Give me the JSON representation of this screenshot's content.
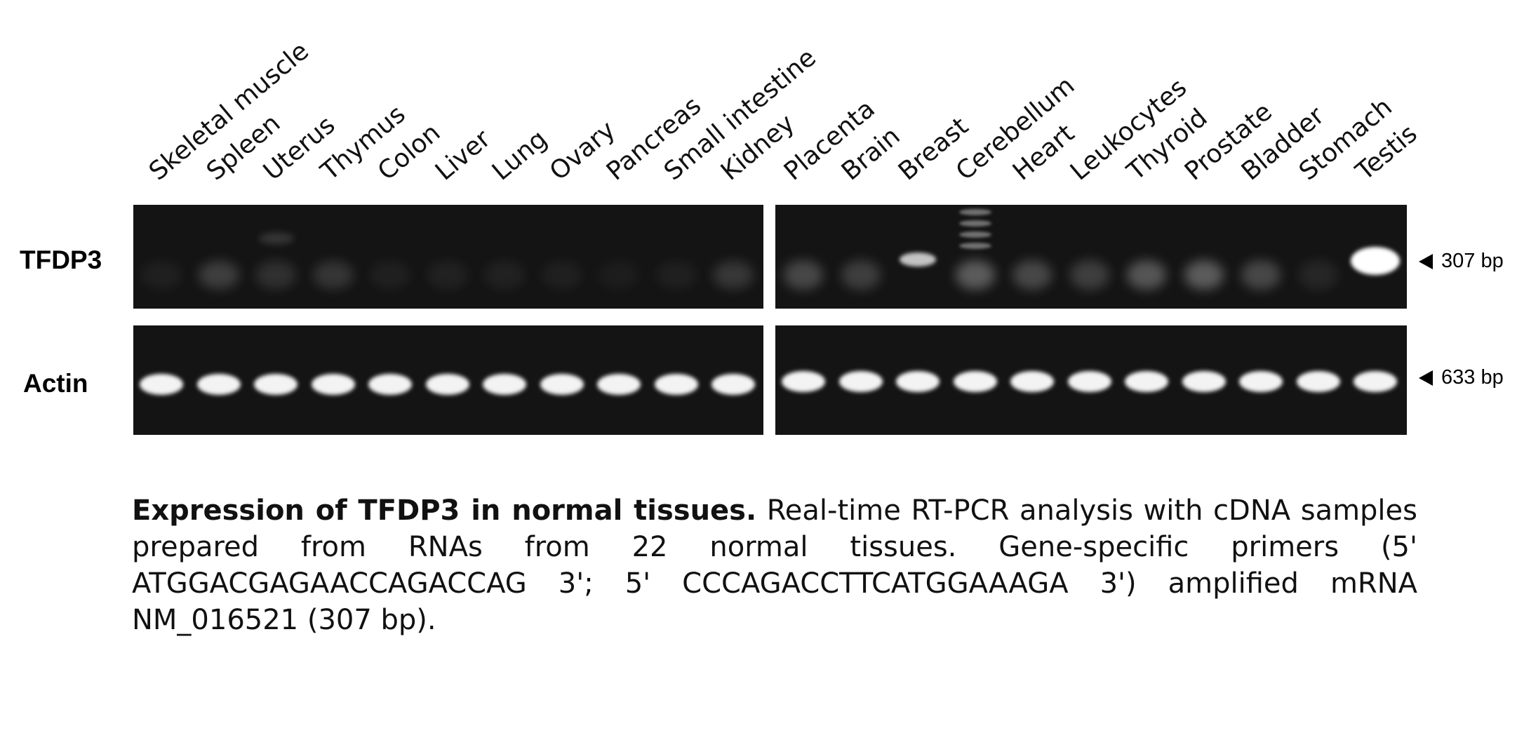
{
  "figure": {
    "lanes_left": [
      "Skeletal muscle",
      "Spleen",
      "Uterus",
      "Thymus",
      "Colon",
      "Liver",
      "Lung",
      "Ovary",
      "Pancreas",
      "Small intestine",
      "Kidney"
    ],
    "lanes_right": [
      "Placenta",
      "Brain",
      "Breast",
      "Cerebellum",
      "Heart",
      "Leukocytes",
      "Thyroid",
      "Prostate",
      "Bladder",
      "Stomach",
      "Testis"
    ],
    "rows": [
      {
        "label": "TFDP3",
        "marker": "307 bp"
      },
      {
        "label": "Actin",
        "marker": "633 bp"
      }
    ],
    "band_color": "#ffffff",
    "gel_color": "#141414"
  },
  "caption": {
    "bold": "Expression of TFDP3 in normal tissues.",
    "text": " Real-time RT-PCR analysis with cDNA samples prepared from RNAs from 22 normal tissues. Gene-specific primers (5' ATGGACGAGAACCAGACCAG 3'; 5' CCCAGACCTTCATGGAAAGA 3') amplified mRNA NM_016521 (307 bp)."
  }
}
